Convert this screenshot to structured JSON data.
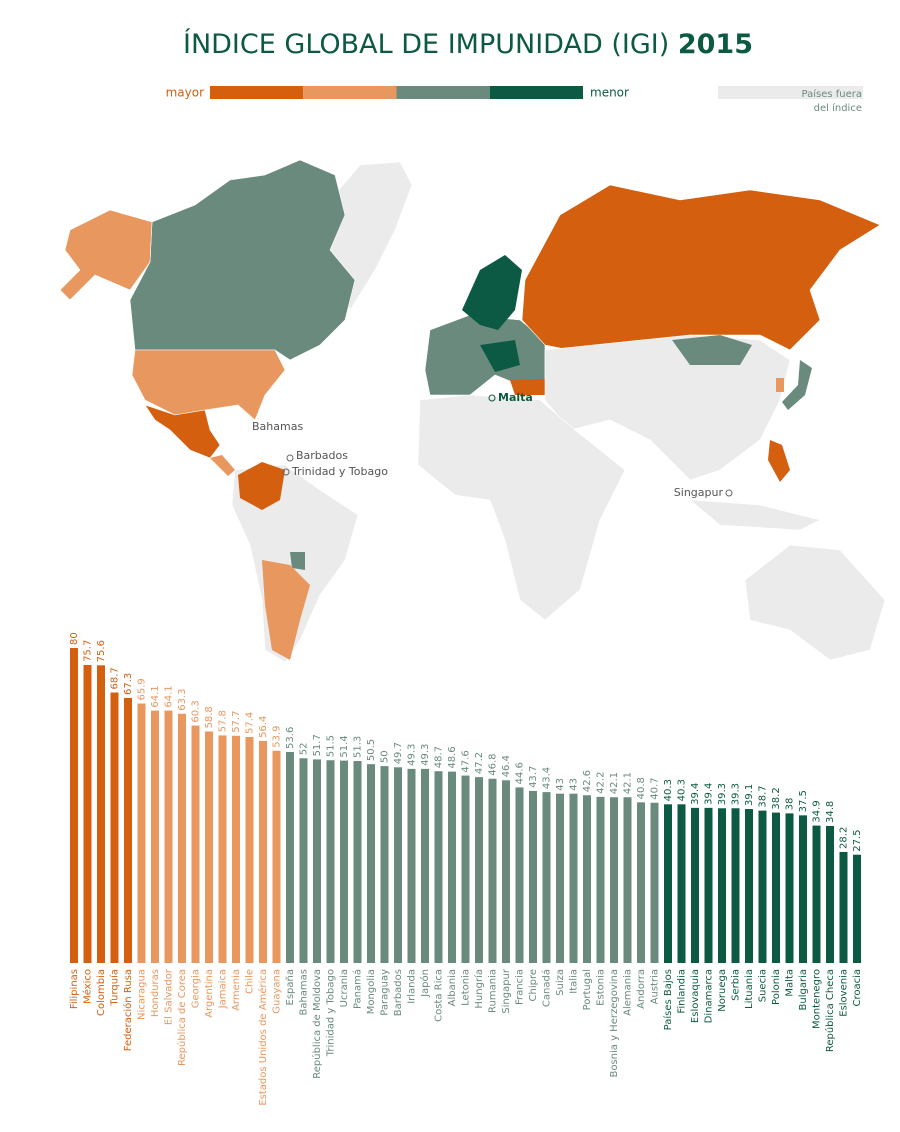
{
  "header": {
    "title": "ÍNDICE GLOBAL DE IMPUNIDAD (IGI)",
    "year": "2015"
  },
  "legend": {
    "high": "mayor",
    "low": "menor",
    "colors": [
      "#d35f0f",
      "#e8975e",
      "#6a8a7e",
      "#0d5a44"
    ],
    "outside_lines": [
      "Países fuera",
      "del índice"
    ],
    "outside_color": "#ebebeb"
  },
  "map": {
    "labels": [
      "Bahamas",
      "Barbados",
      "Trinidad y Tobago",
      "Malta",
      "Singapur"
    ]
  },
  "chart_data": {
    "type": "bar",
    "categories": [
      "Filipinas",
      "México",
      "Colombia",
      "Turquía",
      "Federación Rusa",
      "Nicaragua",
      "Honduras",
      "El Salvador",
      "República de Corea",
      "Georgia",
      "Argentina",
      "Jamaica",
      "Armenia",
      "Chile",
      "Estados Unidos de América",
      "Guayana",
      "España",
      "Bahamas",
      "República de Moldova",
      "Trinidad y Tobago",
      "Ucrania",
      "Panamá",
      "Mongolia",
      "Paraguay",
      "Barbados",
      "Irlanda",
      "Japón",
      "Costa Rica",
      "Albania",
      "Letonia",
      "Hungría",
      "Rumania",
      "Singapur",
      "Francia",
      "Chipre",
      "Canadá",
      "Suiza",
      "Italia",
      "Portugal",
      "Estonia",
      "Bosnia y Herzegovina",
      "Alemania",
      "Andorra",
      "Austria",
      "Países Bajos",
      "Finlandia",
      "Eslovaquia",
      "Dinamarca",
      "Noruega",
      "Serbia",
      "Lituania",
      "Suecia",
      "Polonia",
      "Malta",
      "Bulgaria",
      "Montenegro",
      "República Checa",
      "Eslovenia",
      "Croacia"
    ],
    "values": [
      80,
      75.7,
      75.6,
      68.7,
      67.3,
      65.9,
      64.1,
      64.1,
      63.3,
      60.3,
      58.8,
      57.8,
      57.7,
      57.4,
      56.4,
      53.9,
      53.6,
      52,
      51.7,
      51.5,
      51.4,
      51.3,
      50.5,
      50,
      49.7,
      49.3,
      49.3,
      48.7,
      48.6,
      47.6,
      47.2,
      46.8,
      46.4,
      44.6,
      43.7,
      43.4,
      43,
      43,
      42.6,
      42.2,
      42.1,
      42.1,
      40.8,
      40.7,
      40.3,
      40.3,
      39.4,
      39.4,
      39.3,
      39.3,
      39.1,
      38.7,
      38.2,
      38,
      37.5,
      34.9,
      34.8,
      28.2,
      27.5
    ],
    "colors": [
      "#d35f0f",
      "#d35f0f",
      "#d35f0f",
      "#d35f0f",
      "#d35f0f",
      "#e8975e",
      "#e8975e",
      "#e8975e",
      "#e8975e",
      "#e8975e",
      "#e8975e",
      "#e8975e",
      "#e8975e",
      "#e8975e",
      "#e8975e",
      "#e8975e",
      "#6a8a7e",
      "#6a8a7e",
      "#6a8a7e",
      "#6a8a7e",
      "#6a8a7e",
      "#6a8a7e",
      "#6a8a7e",
      "#6a8a7e",
      "#6a8a7e",
      "#6a8a7e",
      "#6a8a7e",
      "#6a8a7e",
      "#6a8a7e",
      "#6a8a7e",
      "#6a8a7e",
      "#6a8a7e",
      "#6a8a7e",
      "#6a8a7e",
      "#6a8a7e",
      "#6a8a7e",
      "#6a8a7e",
      "#6a8a7e",
      "#6a8a7e",
      "#6a8a7e",
      "#6a8a7e",
      "#6a8a7e",
      "#6a8a7e",
      "#6a8a7e",
      "#0d5a44",
      "#0d5a44",
      "#0d5a44",
      "#0d5a44",
      "#0d5a44",
      "#0d5a44",
      "#0d5a44",
      "#0d5a44",
      "#0d5a44",
      "#0d5a44",
      "#0d5a44",
      "#0d5a44",
      "#0d5a44",
      "#0d5a44",
      "#0d5a44"
    ]
  }
}
